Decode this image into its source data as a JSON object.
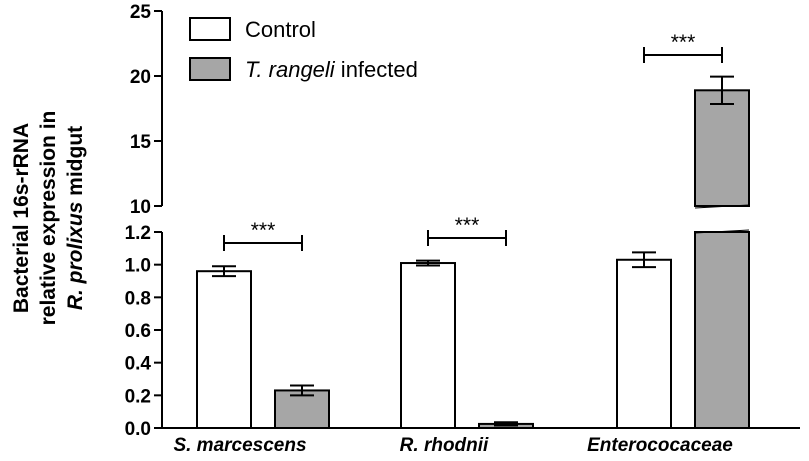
{
  "chart_data": {
    "type": "bar",
    "ylabel_lines": [
      "Bacterial 16s-rRNA",
      "relative expression in"
    ],
    "ylabel_line3_italic": "R. prolixus",
    "ylabel_line3_rest": " midgut",
    "categories": [
      "S. marcescens",
      "R. rhodnii",
      "Enterococaceae"
    ],
    "series": [
      {
        "name": "Control",
        "values": [
          0.96,
          1.01,
          1.03
        ],
        "errors": [
          0.03,
          0.015,
          0.045
        ]
      },
      {
        "name": "infected",
        "name_italic": "T. rangeli",
        "values": [
          0.23,
          0.025,
          18.9
        ],
        "errors": [
          0.03,
          0.01,
          1.05
        ]
      }
    ],
    "significance": [
      "***",
      "***",
      "***"
    ],
    "y_axis_segments": [
      {
        "range": [
          0,
          1.2
        ],
        "ticks": [
          "0.0",
          "0.2",
          "0.4",
          "0.6",
          "0.8",
          "1.0",
          "1.2"
        ]
      },
      {
        "range": [
          10,
          25
        ],
        "ticks": [
          "10",
          "15",
          "20",
          "25"
        ]
      }
    ],
    "colors": {
      "control": "#ffffff",
      "infected": "#a6a6a6",
      "outline": "#000000"
    },
    "legend_position": "top-left"
  }
}
